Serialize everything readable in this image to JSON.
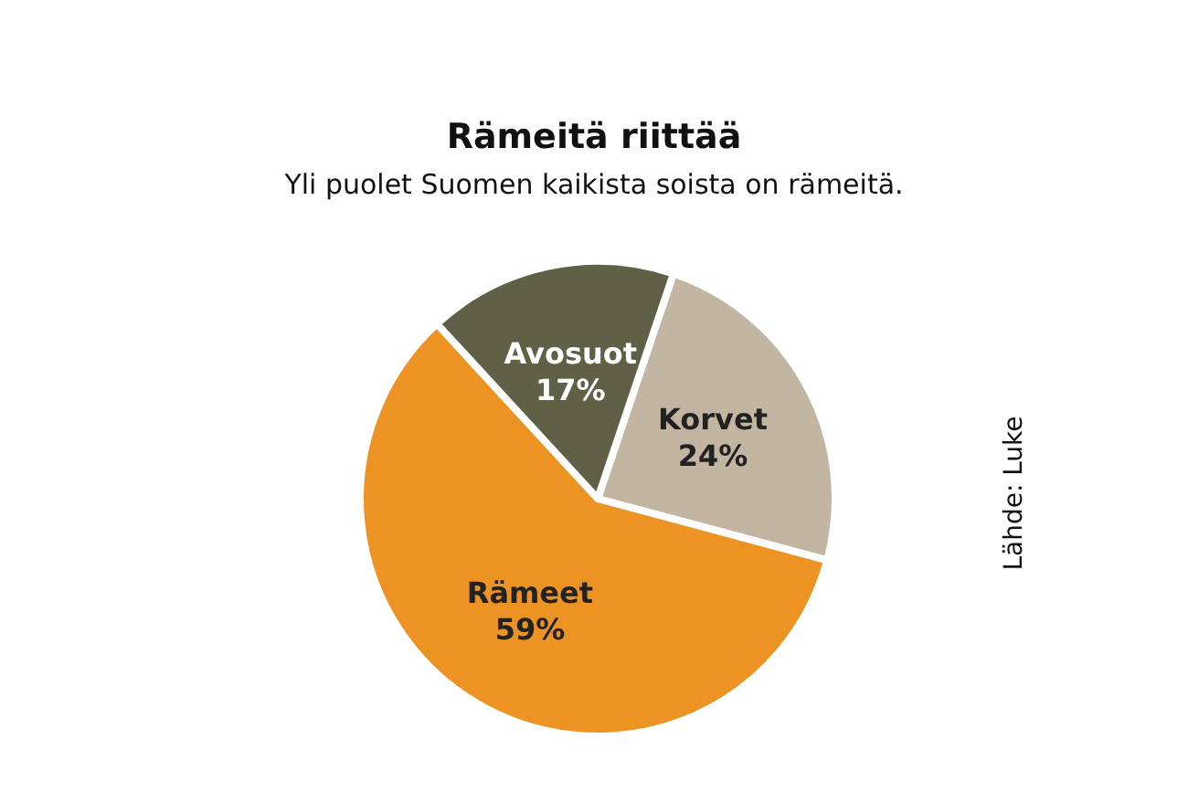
{
  "chart_data": {
    "type": "pie",
    "title": "Rämeitä riittää",
    "subtitle": "Yli puolet Suomen kaikista soista on rämeitä.",
    "categories": [
      "Korvet",
      "Avosuot",
      "Rämeet"
    ],
    "values": [
      24,
      17,
      59
    ],
    "value_labels": [
      "24%",
      "17%",
      "59%"
    ],
    "colors": [
      "#c2b5a2",
      "#5f6045",
      "#ec9323"
    ],
    "annotations": [
      "Lähde: Luke"
    ],
    "legend": false
  }
}
